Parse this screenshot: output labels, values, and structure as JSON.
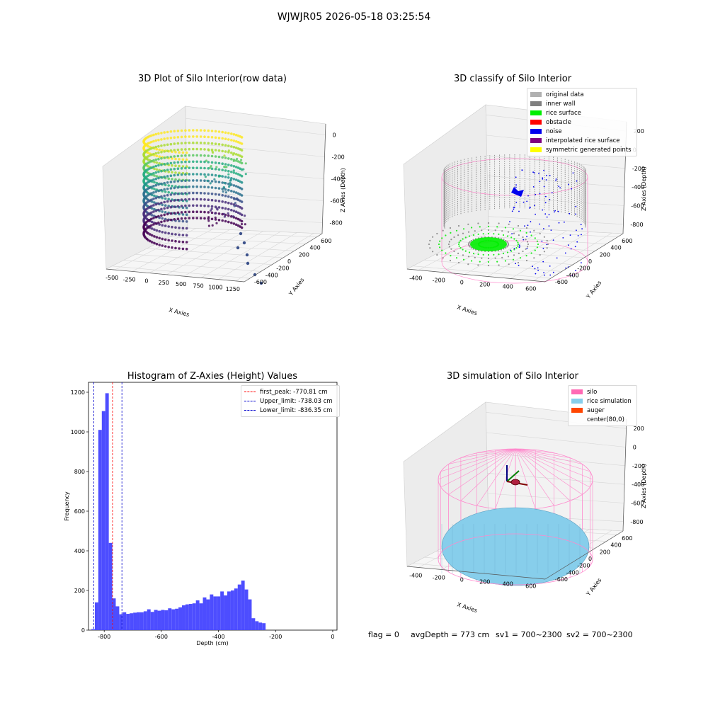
{
  "suptitle": "WJWJR05 2026-05-18 03:25:54",
  "status": {
    "flag": "flag = 0",
    "avg_depth": "avgDepth = 773 cm",
    "sv1": "sv1 = 700~2300",
    "sv2": "sv2 = 700~2300"
  },
  "chart_data": [
    {
      "type": "scatter",
      "projection": "3d",
      "title": "3D Plot of Silo Interior(row data)",
      "xlabel": "X Axies",
      "ylabel": "Y Axies",
      "zlabel": "Z Axies (Depth)",
      "x_ticks": [
        "-500",
        "-250",
        "0",
        "250",
        "500",
        "750",
        "1000",
        "1250"
      ],
      "y_ticks": [
        "-600",
        "-400",
        "-200",
        "0",
        "200",
        "400",
        "600"
      ],
      "z_ticks": [
        "0",
        "-200",
        "-400",
        "-600",
        "-800"
      ],
      "colormap": "viridis"
    },
    {
      "type": "scatter",
      "projection": "3d",
      "title": "3D classify of Silo Interior",
      "xlabel": "X Axies",
      "ylabel": "Y Axies",
      "zlabel": "Z Axies (Depth)",
      "x_ticks": [
        "-400",
        "-200",
        "0",
        "200",
        "400",
        "600"
      ],
      "y_ticks": [
        "-600",
        "-400",
        "-200",
        "0",
        "200",
        "400",
        "600"
      ],
      "z_ticks": [
        "200",
        "0",
        "-200",
        "-400",
        "-600",
        "-800"
      ],
      "legend_position": "top-right",
      "legend": [
        {
          "label": "original data",
          "color": "#b0b0b0"
        },
        {
          "label": "inner wall",
          "color": "#808080"
        },
        {
          "label": "rice surface",
          "color": "#00ee00"
        },
        {
          "label": "obstacle",
          "color": "#ff0000"
        },
        {
          "label": "noise",
          "color": "#0000ee"
        },
        {
          "label": "interpolated rice surface",
          "color": "#800080"
        },
        {
          "label": "symmetric generated points",
          "color": "#ffff00"
        }
      ]
    },
    {
      "type": "bar",
      "title": "Histogram of Z-Axies (Height) Values",
      "xlabel": "Depth (cm)",
      "ylabel": "Frequency",
      "xlim": [
        -855,
        15
      ],
      "ylim": [
        0,
        1250
      ],
      "x_ticks": [
        -800,
        -600,
        -400,
        -200,
        0
      ],
      "y_ticks": [
        0,
        200,
        400,
        600,
        800,
        1000,
        1200
      ],
      "bar_color": "#4d4dff",
      "bin_start": -845,
      "bin_width": 12.2,
      "values": [
        5,
        140,
        1010,
        1105,
        1195,
        440,
        160,
        120,
        80,
        90,
        82,
        85,
        88,
        90,
        90,
        95,
        105,
        92,
        102,
        98,
        102,
        100,
        110,
        105,
        108,
        115,
        125,
        130,
        132,
        135,
        150,
        135,
        165,
        155,
        180,
        170,
        170,
        195,
        175,
        195,
        200,
        210,
        230,
        250,
        205,
        155,
        60,
        45,
        38,
        35
      ],
      "lines": [
        {
          "label": "first_peak: -770.81 cm",
          "x": -770.81,
          "color": "#ff0000"
        },
        {
          "label": "Upper_limit: -738.03 cm",
          "x": -738.03,
          "color": "#0000cc"
        },
        {
          "label": "Lower_limit: -836.35 cm",
          "x": -836.35,
          "color": "#0000cc"
        }
      ],
      "legend_position": "top-right"
    },
    {
      "type": "scatter",
      "projection": "3d",
      "title": "3D simulation of Silo Interior",
      "xlabel": "X Axies",
      "ylabel": "Y Axies",
      "zlabel": "Z Axies (Depth)",
      "x_ticks": [
        "-400",
        "-200",
        "0",
        "200",
        "400",
        "600"
      ],
      "y_ticks": [
        "-600",
        "-400",
        "-200",
        "0",
        "200",
        "400",
        "600"
      ],
      "z_ticks": [
        "200",
        "0",
        "-200",
        "-400",
        "-600",
        "-800"
      ],
      "legend_position": "top-right",
      "legend": [
        {
          "label": "silo",
          "color": "#ff69b4"
        },
        {
          "label": "rice simulation",
          "color": "#87ceeb"
        },
        {
          "label": "auger",
          "color": "#ff4500"
        },
        {
          "label": "center(80,0)",
          "color": ""
        }
      ]
    }
  ]
}
